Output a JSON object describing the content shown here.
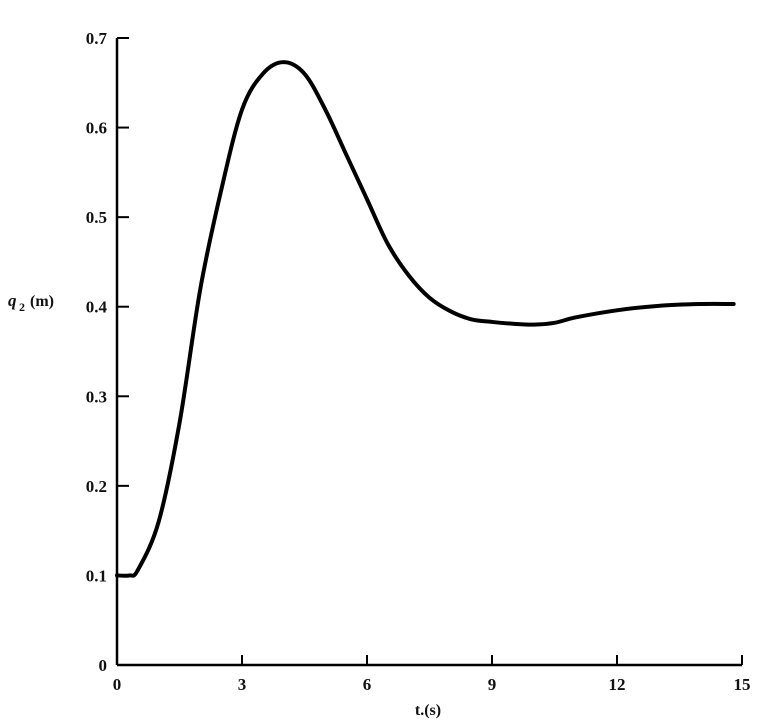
{
  "chart_data": {
    "type": "line",
    "title": "",
    "xlabel": "t.(s)",
    "ylabel_main": "q",
    "ylabel_sub": "2",
    "ylabel_unit": "(m)",
    "xlim": [
      0,
      15
    ],
    "ylim": [
      0,
      0.7
    ],
    "xticks": [
      0,
      3,
      6,
      9,
      12,
      15
    ],
    "yticks": [
      0,
      0.1,
      0.2,
      0.3,
      0.4,
      0.5,
      0.6,
      0.7
    ],
    "ytick_labels": [
      "0",
      "0.1",
      "0.2",
      "0.3",
      "0.4",
      "0.5",
      "0.6",
      "0.7"
    ],
    "grid": false,
    "series": [
      {
        "color": "#000000",
        "x": [
          0,
          0.3,
          0.5,
          1,
          1.5,
          2,
          2.5,
          3,
          3.5,
          4,
          4.5,
          5,
          5.5,
          6,
          6.5,
          7,
          7.5,
          8,
          8.5,
          9,
          9.5,
          10,
          10.5,
          11,
          12,
          13,
          14,
          14.8
        ],
        "y": [
          0.1,
          0.1,
          0.106,
          0.16,
          0.27,
          0.42,
          0.53,
          0.62,
          0.66,
          0.673,
          0.66,
          0.62,
          0.57,
          0.52,
          0.47,
          0.435,
          0.41,
          0.395,
          0.386,
          0.383,
          0.381,
          0.38,
          0.382,
          0.388,
          0.396,
          0.401,
          0.403,
          0.403
        ]
      }
    ]
  }
}
